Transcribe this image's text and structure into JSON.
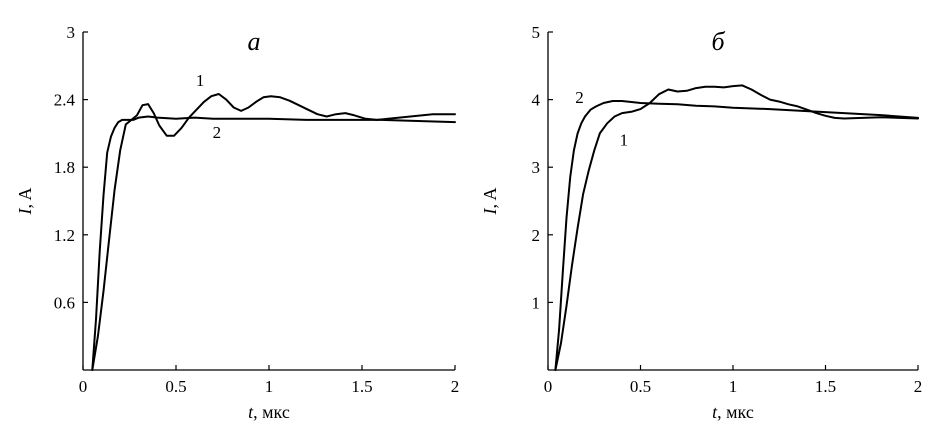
{
  "chart_data": [
    {
      "type": "line",
      "title": "а",
      "xlabel": {
        "symbol": "t",
        "rest": ", мкс"
      },
      "ylabel": {
        "symbol": "I",
        "rest": ", A"
      },
      "xlim": [
        0,
        2
      ],
      "ylim": [
        0,
        3
      ],
      "xticks": [
        0,
        0.5,
        1,
        1.5,
        2
      ],
      "xtick_labels": [
        "0",
        "0.5",
        "1",
        "1.5",
        "2"
      ],
      "yticks": [
        0.6,
        1.2,
        1.8,
        2.4,
        3
      ],
      "ytick_labels": [
        "0.6",
        "1.2",
        "1.8",
        "2.4",
        "3"
      ],
      "grid": false,
      "series": [
        {
          "label": "1",
          "label_at": [
            0.63,
            2.52
          ],
          "x": [
            0.05,
            0.08,
            0.11,
            0.14,
            0.17,
            0.2,
            0.23,
            0.26,
            0.29,
            0.32,
            0.35,
            0.38,
            0.41,
            0.45,
            0.49,
            0.53,
            0.57,
            0.61,
            0.65,
            0.69,
            0.73,
            0.77,
            0.81,
            0.85,
            0.89,
            0.93,
            0.97,
            1.01,
            1.06,
            1.11,
            1.16,
            1.21,
            1.26,
            1.31,
            1.36,
            1.41,
            1.46,
            1.52,
            1.58,
            1.64,
            1.7,
            1.76,
            1.82,
            1.88,
            1.94,
            2.0
          ],
          "y": [
            0.0,
            0.3,
            0.7,
            1.15,
            1.6,
            1.95,
            2.18,
            2.22,
            2.26,
            2.35,
            2.36,
            2.28,
            2.17,
            2.08,
            2.08,
            2.15,
            2.24,
            2.31,
            2.38,
            2.43,
            2.45,
            2.4,
            2.33,
            2.3,
            2.33,
            2.38,
            2.42,
            2.43,
            2.42,
            2.39,
            2.35,
            2.31,
            2.27,
            2.25,
            2.27,
            2.28,
            2.26,
            2.23,
            2.22,
            2.23,
            2.24,
            2.25,
            2.26,
            2.27,
            2.27,
            2.27
          ]
        },
        {
          "label": "2",
          "label_at": [
            0.72,
            2.06
          ],
          "x": [
            0.05,
            0.07,
            0.09,
            0.11,
            0.13,
            0.15,
            0.17,
            0.19,
            0.21,
            0.24,
            0.27,
            0.3,
            0.35,
            0.4,
            0.5,
            0.6,
            0.7,
            0.8,
            0.9,
            1.0,
            1.2,
            1.4,
            1.6,
            1.8,
            2.0
          ],
          "y": [
            0.0,
            0.45,
            1.05,
            1.55,
            1.93,
            2.07,
            2.15,
            2.2,
            2.22,
            2.22,
            2.22,
            2.24,
            2.25,
            2.24,
            2.23,
            2.24,
            2.23,
            2.23,
            2.23,
            2.23,
            2.22,
            2.22,
            2.22,
            2.21,
            2.2
          ]
        }
      ]
    },
    {
      "type": "line",
      "title": "б",
      "xlabel": {
        "symbol": "t",
        "rest": ", мкс"
      },
      "ylabel": {
        "symbol": "I",
        "rest": ", A"
      },
      "xlim": [
        0,
        2
      ],
      "ylim": [
        0,
        5
      ],
      "xticks": [
        0,
        0.5,
        1,
        1.5,
        2
      ],
      "xtick_labels": [
        "0",
        "0.5",
        "1",
        "1.5",
        "2"
      ],
      "yticks": [
        1,
        2,
        3,
        4,
        5
      ],
      "ytick_labels": [
        "1",
        "2",
        "3",
        "4",
        "5"
      ],
      "grid": false,
      "series": [
        {
          "label": "1",
          "label_at": [
            0.41,
            3.32
          ],
          "x": [
            0.04,
            0.07,
            0.1,
            0.13,
            0.16,
            0.19,
            0.22,
            0.25,
            0.28,
            0.32,
            0.36,
            0.4,
            0.45,
            0.5,
            0.55,
            0.6,
            0.65,
            0.7,
            0.75,
            0.8,
            0.85,
            0.9,
            0.95,
            1.0,
            1.05,
            1.1,
            1.15,
            1.2,
            1.25,
            1.3,
            1.35,
            1.4,
            1.45,
            1.5,
            1.55,
            1.6,
            1.7,
            1.8,
            1.9,
            2.0
          ],
          "y": [
            0.0,
            0.4,
            0.95,
            1.55,
            2.1,
            2.6,
            2.95,
            3.25,
            3.5,
            3.65,
            3.75,
            3.8,
            3.82,
            3.86,
            3.95,
            4.08,
            4.15,
            4.12,
            4.13,
            4.17,
            4.19,
            4.19,
            4.18,
            4.2,
            4.21,
            4.15,
            4.07,
            4.0,
            3.97,
            3.93,
            3.9,
            3.85,
            3.8,
            3.76,
            3.73,
            3.72,
            3.73,
            3.74,
            3.73,
            3.72
          ]
        },
        {
          "label": "2",
          "label_at": [
            0.17,
            3.95
          ],
          "x": [
            0.04,
            0.06,
            0.08,
            0.1,
            0.12,
            0.14,
            0.16,
            0.18,
            0.2,
            0.23,
            0.26,
            0.3,
            0.35,
            0.4,
            0.5,
            0.6,
            0.7,
            0.8,
            0.9,
            1.0,
            1.2,
            1.4,
            1.6,
            1.8,
            2.0
          ],
          "y": [
            0.0,
            0.6,
            1.45,
            2.25,
            2.85,
            3.25,
            3.5,
            3.65,
            3.75,
            3.85,
            3.9,
            3.95,
            3.98,
            3.98,
            3.95,
            3.94,
            3.93,
            3.91,
            3.9,
            3.88,
            3.86,
            3.83,
            3.8,
            3.77,
            3.73
          ]
        }
      ]
    }
  ]
}
